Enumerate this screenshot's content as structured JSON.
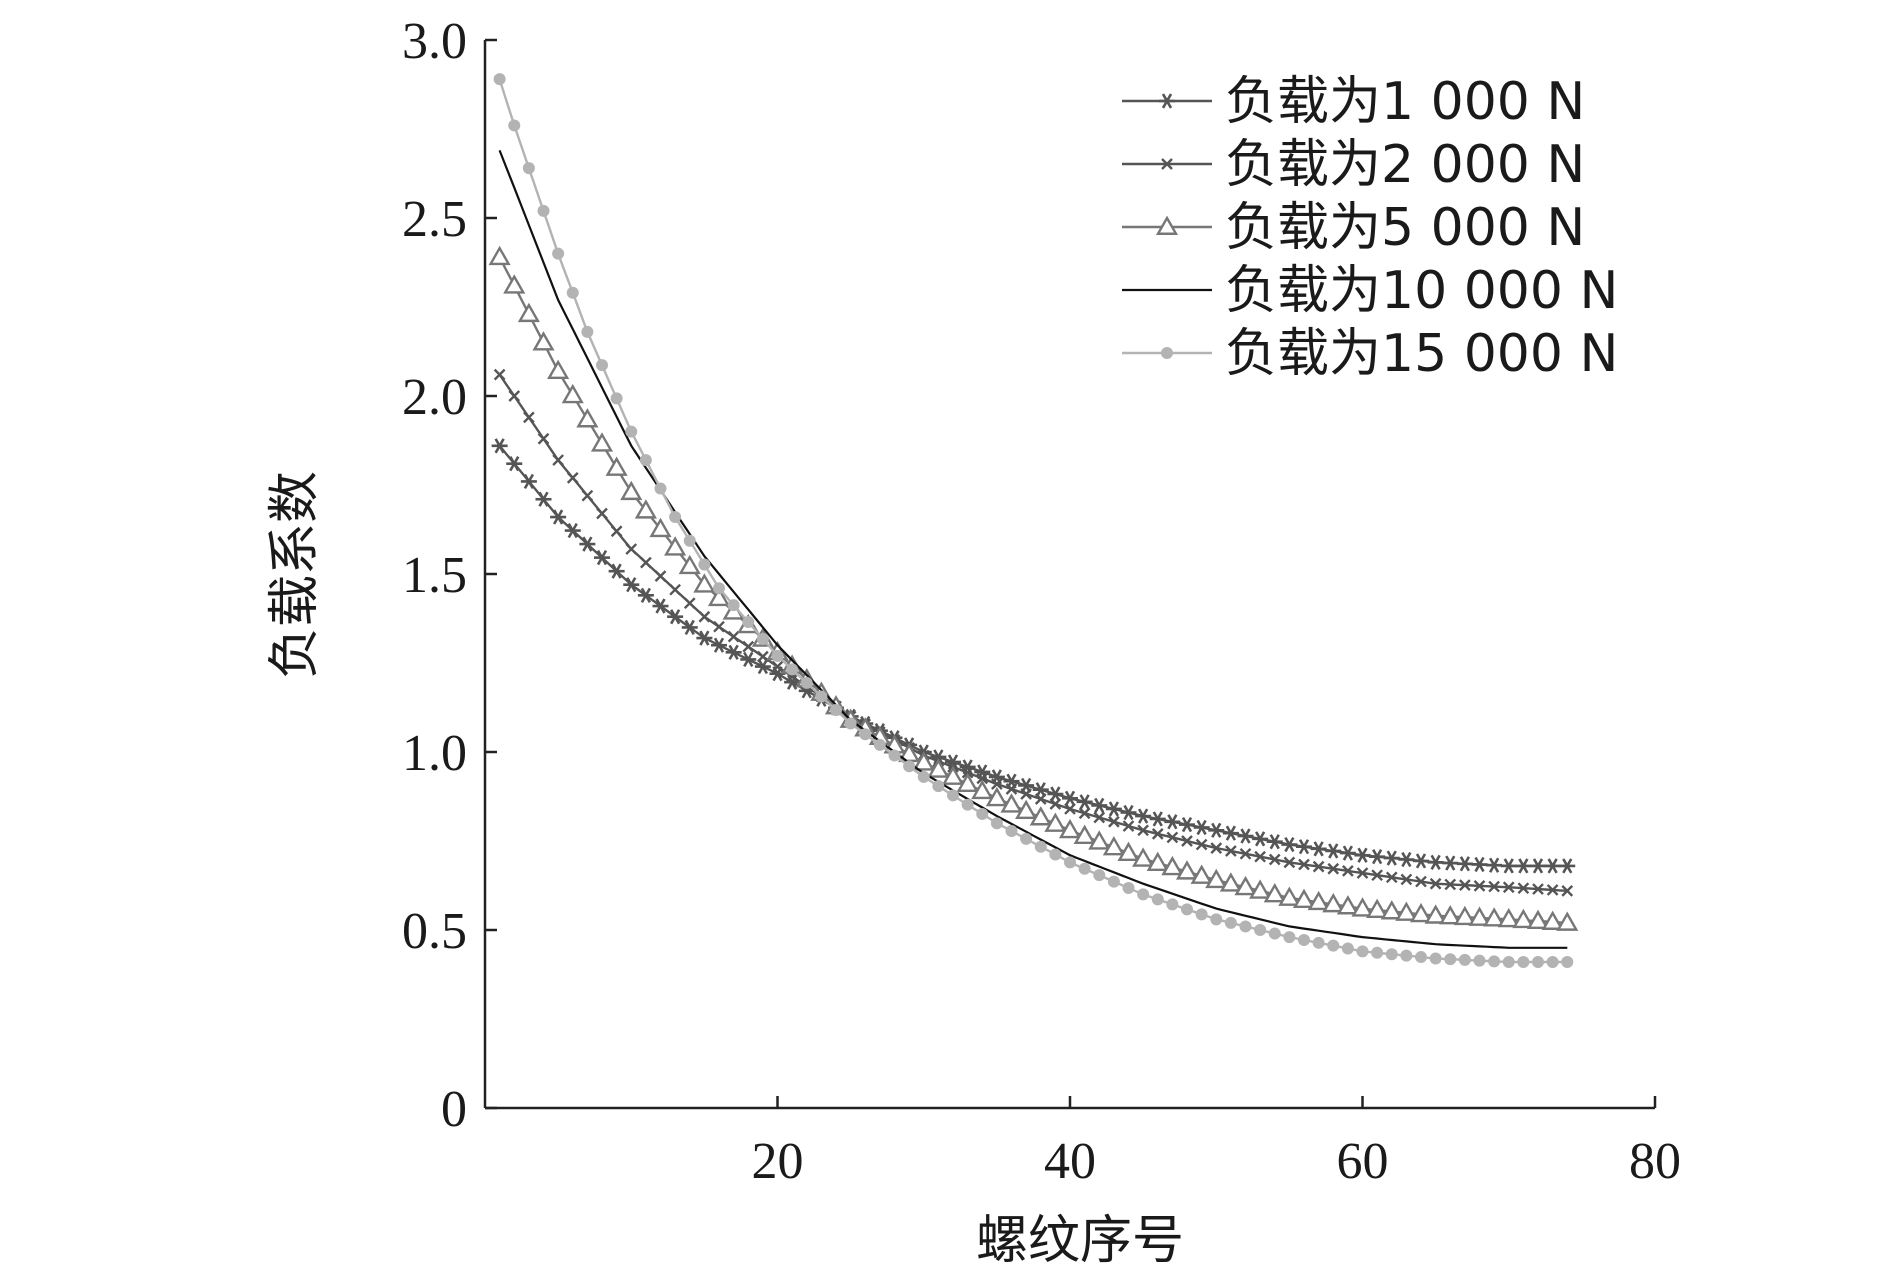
{
  "chart_data": {
    "type": "line",
    "xlabel": "螺纹序号",
    "ylabel": "负载系数",
    "xlim": [
      0,
      80
    ],
    "ylim": [
      0,
      3.0
    ],
    "x_ticks": [
      "20",
      "40",
      "60",
      "80"
    ],
    "y_ticks": [
      "0",
      "0.5",
      "1.0",
      "1.5",
      "2.0",
      "2.5",
      "3.0"
    ],
    "legend_position": "top-right",
    "grid": false,
    "series": [
      {
        "name": "负载为1 000 N",
        "marker": "asterisk-icon",
        "color": "#555555",
        "x": [
          1,
          5,
          10,
          15,
          20,
          25,
          30,
          35,
          40,
          45,
          50,
          55,
          60,
          65,
          70,
          74
        ],
        "y": [
          1.86,
          1.66,
          1.47,
          1.32,
          1.22,
          1.1,
          1.0,
          0.93,
          0.87,
          0.82,
          0.78,
          0.74,
          0.71,
          0.69,
          0.68,
          0.68
        ]
      },
      {
        "name": "负载为2 000 N",
        "marker": "x-icon",
        "color": "#555555",
        "x": [
          1,
          5,
          10,
          15,
          20,
          25,
          30,
          35,
          40,
          45,
          50,
          55,
          60,
          65,
          70,
          74
        ],
        "y": [
          2.06,
          1.82,
          1.57,
          1.38,
          1.24,
          1.1,
          0.99,
          0.91,
          0.84,
          0.78,
          0.73,
          0.69,
          0.66,
          0.63,
          0.62,
          0.61
        ]
      },
      {
        "name": "负载为5 000 N",
        "marker": "triangle-icon",
        "color": "#777777",
        "x": [
          1,
          5,
          10,
          15,
          20,
          25,
          30,
          35,
          40,
          45,
          50,
          55,
          60,
          65,
          70,
          74
        ],
        "y": [
          2.39,
          2.07,
          1.73,
          1.47,
          1.28,
          1.09,
          0.97,
          0.87,
          0.78,
          0.7,
          0.64,
          0.59,
          0.56,
          0.54,
          0.53,
          0.52
        ]
      },
      {
        "name": "负载为10 000 N",
        "marker": "none",
        "color": "#111111",
        "x": [
          1,
          5,
          10,
          15,
          20,
          25,
          30,
          35,
          40,
          45,
          50,
          55,
          60,
          65,
          70,
          74
        ],
        "y": [
          2.69,
          2.27,
          1.86,
          1.55,
          1.3,
          1.09,
          0.94,
          0.82,
          0.71,
          0.63,
          0.56,
          0.51,
          0.48,
          0.46,
          0.45,
          0.45
        ]
      },
      {
        "name": "负载为15 000 N",
        "marker": "dot-icon",
        "color": "#b3b3b3",
        "x": [
          1,
          2,
          3,
          5,
          7,
          10,
          13,
          16,
          20,
          25,
          30,
          35,
          40,
          45,
          50,
          55,
          60,
          65,
          70,
          74
        ],
        "y": [
          2.89,
          2.76,
          2.64,
          2.4,
          2.18,
          1.9,
          1.66,
          1.46,
          1.27,
          1.08,
          0.93,
          0.8,
          0.69,
          0.6,
          0.53,
          0.48,
          0.44,
          0.42,
          0.41,
          0.41
        ]
      }
    ]
  }
}
